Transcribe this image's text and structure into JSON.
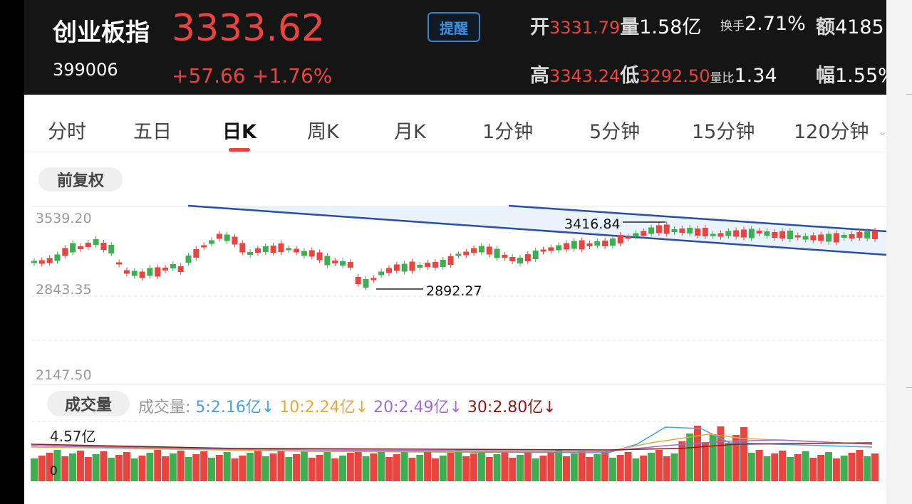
{
  "header": {
    "name": "创业板指",
    "code": "399006",
    "price": "3333.62",
    "change": "+57.66",
    "change_pct": "+1.76%",
    "remind_label": "提醒",
    "open_label": "开",
    "open_value": "3331.79",
    "volume_label": "量",
    "volume_value": "1.58亿",
    "turnover_label": "换手",
    "turnover_value": "2.71%",
    "amount_label": "额",
    "amount_value": "4185",
    "high_label": "高",
    "high_value": "3343.24",
    "low_label": "低",
    "low_value": "3292.50",
    "volratio_label": "量比",
    "volratio_value": "1.34",
    "amp_label": "幅",
    "amp_value": "1.55%"
  },
  "tabs": [
    "分时",
    "五日",
    "日K",
    "周K",
    "月K",
    "1分钟",
    "5分钟",
    "15分钟",
    "120分钟"
  ],
  "active_tab": "日K",
  "adjust_label": "前复权",
  "price_chart": {
    "y_labels": [
      "3539.20",
      "2843.35",
      "2147.50"
    ],
    "high_annotation": "3416.84",
    "low_annotation": "2892.27"
  },
  "volume": {
    "pill_label": "成交量",
    "label_prefix": "成交量:",
    "ma5": "5:2.16亿↓",
    "ma10": "10:2.24亿↓",
    "ma20": "20:2.49亿↓",
    "ma30": "30:2.80亿↓",
    "max_label": "4.57亿",
    "zero_label": "0"
  },
  "colors": {
    "up": "#e84541",
    "down": "#3fae52",
    "channel": "#2a4ea6",
    "ma5": "#4aa0e0",
    "ma10": "#e8a93b",
    "ma20": "#9b6fd6",
    "ma30": "#8b1a1a"
  }
}
